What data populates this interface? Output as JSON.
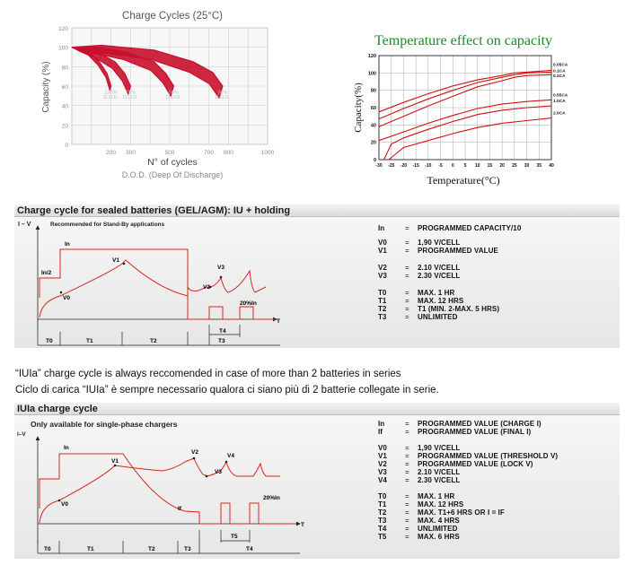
{
  "chart_data": [
    {
      "type": "area",
      "title": "Charge Cycles (25°C)",
      "xlabel": "N° of cycles",
      "xlabel2": "D.O.D. (Deep Of Discharge)",
      "ylabel": "Capacity (%)",
      "xlim": [
        0,
        1000
      ],
      "ylim": [
        0,
        120
      ],
      "xticks": [
        "200",
        "300",
        "500",
        "700",
        "800",
        "1000"
      ],
      "xtick_values": [
        200,
        300,
        500,
        700,
        800,
        1000
      ],
      "yticks": [
        "0",
        "20",
        "40",
        "60",
        "80",
        "100",
        "120"
      ],
      "grid": true,
      "color": "#c8102e",
      "series": [
        {
          "name": "100% D.O.D.",
          "label_top": "100%",
          "label_bottom": "D.O.D.",
          "label_x": 200,
          "values": [
            [
              0,
              100
            ],
            [
              40,
              100
            ],
            [
              90,
              95
            ],
            [
              140,
              85
            ],
            [
              180,
              73
            ],
            [
              200,
              60
            ]
          ]
        },
        {
          "name": "75% D.O.D.",
          "label_top": "75%",
          "label_bottom": "D.O.D.",
          "label_x": 300,
          "values": [
            [
              0,
              100
            ],
            [
              60,
              100
            ],
            [
              140,
              94
            ],
            [
              220,
              85
            ],
            [
              270,
              73
            ],
            [
              300,
              60
            ]
          ]
        },
        {
          "name": "50% D.O.D.",
          "label_top": "50%",
          "label_bottom": "D.O.D.",
          "label_x": 520,
          "values": [
            [
              0,
              100
            ],
            [
              100,
              101
            ],
            [
              280,
              95
            ],
            [
              420,
              85
            ],
            [
              480,
              73
            ],
            [
              520,
              60
            ]
          ]
        },
        {
          "name": "30% D.O.D.",
          "label_top": "30%",
          "label_bottom": "D.O.D.",
          "label_x": 770,
          "values": [
            [
              0,
              100
            ],
            [
              150,
              102
            ],
            [
              420,
              97
            ],
            [
              620,
              85
            ],
            [
              720,
              74
            ],
            [
              770,
              60
            ]
          ]
        }
      ]
    },
    {
      "type": "line",
      "title": "Temperature effect on capacity",
      "xlabel": "Temperature(°C)",
      "ylabel": "Capacity(%)",
      "xlim": [
        -30,
        40
      ],
      "ylim": [
        0,
        120
      ],
      "xticks": [
        "-30",
        "-25",
        "-20",
        "-15",
        "-10",
        "-5",
        "0",
        "5",
        "10",
        "15",
        "20",
        "25",
        "30",
        "35",
        "40"
      ],
      "yticks": [
        "0",
        "20",
        "40",
        "60",
        "80",
        "100",
        "120"
      ],
      "grid": true,
      "title_color": "#1a8a2a",
      "line_color": "#d21010",
      "series": [
        {
          "name": "0.05CA",
          "values": [
            [
              -30,
              55
            ],
            [
              -20,
              66
            ],
            [
              -10,
              76
            ],
            [
              0,
              85
            ],
            [
              10,
              92
            ],
            [
              20,
              97
            ],
            [
              25,
              100
            ],
            [
              30,
              101
            ],
            [
              40,
              103
            ]
          ]
        },
        {
          "name": "0.1CA",
          "values": [
            [
              -30,
              47
            ],
            [
              -20,
              59
            ],
            [
              -10,
              70
            ],
            [
              0,
              80
            ],
            [
              10,
              89
            ],
            [
              20,
              95
            ],
            [
              25,
              98
            ],
            [
              30,
              100
            ],
            [
              40,
              101
            ]
          ]
        },
        {
          "name": "0.2CA",
          "values": [
            [
              -30,
              38
            ],
            [
              -20,
              50
            ],
            [
              -10,
              62
            ],
            [
              0,
              73
            ],
            [
              10,
              84
            ],
            [
              20,
              91
            ],
            [
              25,
              95
            ],
            [
              30,
              97
            ],
            [
              40,
              98
            ]
          ]
        },
        {
          "name": "0.55CA",
          "values": [
            [
              -30,
              22
            ],
            [
              -20,
              32
            ],
            [
              -10,
              42
            ],
            [
              0,
              51
            ],
            [
              10,
              59
            ],
            [
              20,
              64
            ],
            [
              30,
              67
            ],
            [
              40,
              69
            ]
          ]
        },
        {
          "name": "1.0CA",
          "values": [
            [
              -28,
              0
            ],
            [
              -25,
              18
            ],
            [
              -20,
              25
            ],
            [
              -10,
              35
            ],
            [
              0,
              44
            ],
            [
              10,
              52
            ],
            [
              20,
              57
            ],
            [
              30,
              60
            ],
            [
              40,
              62
            ]
          ]
        },
        {
          "name": "2.0CA",
          "values": [
            [
              -26,
              0
            ],
            [
              -20,
              14
            ],
            [
              -10,
              22
            ],
            [
              0,
              30
            ],
            [
              10,
              37
            ],
            [
              20,
              42
            ],
            [
              30,
              45
            ],
            [
              40,
              48
            ]
          ]
        }
      ]
    },
    {
      "type": "line",
      "title": "Charge cycle for sealed batteries (GEL/AGM): IU + holding",
      "axis_y_label": "I – V",
      "axis_x_label": "T",
      "note": "Recommended for Stand-By applications",
      "curve_labels": [
        "In",
        "In/2",
        "V1",
        "V0",
        "V2",
        "V3",
        "20%In"
      ],
      "phases": [
        "T0",
        "T1",
        "T2",
        "T3",
        "T4"
      ]
    },
    {
      "type": "line",
      "title": "IUIa charge cycle",
      "axis_y_label": "I–V",
      "axis_x_label": "T",
      "note": "Only available for single-phase chargers",
      "curve_labels": [
        "In",
        "V1",
        "V0",
        "V2",
        "V3",
        "V4",
        "If",
        "20%In"
      ],
      "phases": [
        "T0",
        "T1",
        "T2",
        "T3",
        "T4",
        "T5"
      ]
    }
  ],
  "section1": {
    "title": "Charge cycle for sealed batteries (GEL/AGM): IU + holding",
    "note": "Recommended for Stand-By applications",
    "specs": [
      {
        "k": "In",
        "v": "PROGRAMMED CAPACITY/10"
      },
      {
        "k": "V0",
        "v": "1,90 V/CELL"
      },
      {
        "k": "V1",
        "v": "PROGRAMMED VALUE"
      },
      {
        "k": "V2",
        "v": "2.10 V/CELL"
      },
      {
        "k": "V3",
        "v": "2.30 V/CELL"
      },
      {
        "k": "T0",
        "v": "MAX. 1 HR"
      },
      {
        "k": "T1",
        "v": "MAX. 12 HRS"
      },
      {
        "k": "T2",
        "v": "T1 (MIN. 2-MAX. 5 HRS)"
      },
      {
        "k": "T3",
        "v": "UNLIMITED"
      }
    ]
  },
  "captions": {
    "en": "“IUIa” charge cycle is always reccomended in case of more than 2 batteries in series",
    "it": "Ciclo di carica “IUIa” è sempre necessario qualora ci siano più di 2 batterie collegate in serie."
  },
  "section2": {
    "title": "IUIa charge cycle",
    "note": "Only available for single-phase chargers",
    "specs": [
      {
        "k": "In",
        "v": "PROGRAMMED VALUE (CHARGE I)"
      },
      {
        "k": "If",
        "v": "PROGRAMMED VALUE (FINAL I)"
      },
      {
        "k": "V0",
        "v": "1,90 V/CELL"
      },
      {
        "k": "V1",
        "v": "PROGRAMMED VALUE (THRESHOLD V)"
      },
      {
        "k": "V2",
        "v": "PROGRAMMED VALUE (LOCK V)"
      },
      {
        "k": "V3",
        "v": "2.10 V/CELL"
      },
      {
        "k": "V4",
        "v": "2.30 V/CELL"
      },
      {
        "k": "T0",
        "v": "MAX. 1 HR"
      },
      {
        "k": "T1",
        "v": "MAX. 12 HRS"
      },
      {
        "k": "T2",
        "v": "MAX. T1+6 HRS OR I = IF"
      },
      {
        "k": "T3",
        "v": "MAX. 4 HRS"
      },
      {
        "k": "T4",
        "v": "UNLIMITED"
      },
      {
        "k": "T5",
        "v": "MAX. 6 HRS"
      }
    ]
  },
  "eq": "="
}
